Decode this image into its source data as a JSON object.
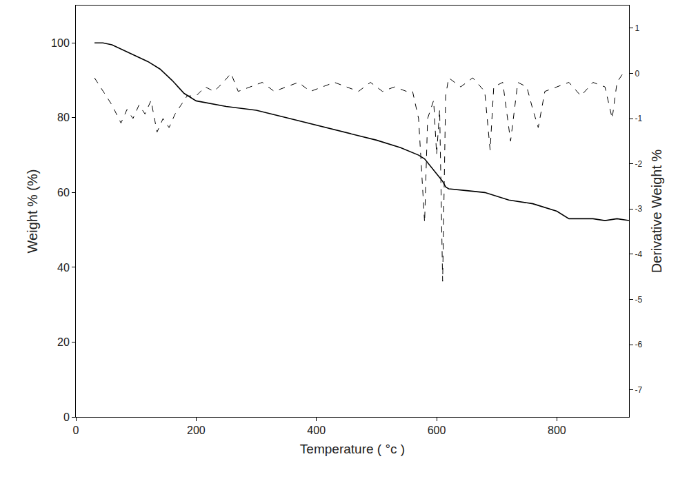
{
  "chart_data": {
    "type": "line",
    "x_label": "Temperature ( °c )",
    "y_label": "Weight % (%)",
    "y2_label": "Derivative Weight %",
    "xlim": [
      0,
      920
    ],
    "xticks": [
      0,
      200,
      400,
      600,
      800
    ],
    "ylim": [
      0,
      110
    ],
    "yticks": [
      0,
      20,
      40,
      60,
      80,
      100
    ],
    "y2lim": [
      -7.6,
      1.5
    ],
    "y2ticks": [
      1,
      0,
      -1,
      -2,
      -3,
      -4,
      -5,
      -6,
      -7
    ],
    "grid": false,
    "series": [
      {
        "name": "Weight %",
        "color": "#000000",
        "line_style": "solid",
        "x": [
          31,
          45,
          60,
          80,
          100,
          120,
          140,
          160,
          180,
          200,
          250,
          300,
          350,
          400,
          450,
          500,
          540,
          570,
          580,
          590,
          600,
          610,
          615,
          620,
          650,
          680,
          720,
          760,
          800,
          820,
          860,
          880,
          900,
          920
        ],
        "values": [
          100,
          100,
          99.5,
          98,
          96.5,
          95,
          93,
          90,
          86.5,
          84.5,
          83,
          82,
          80,
          78,
          76,
          74,
          72,
          70,
          69,
          67,
          65,
          63,
          61.5,
          61,
          60.5,
          60,
          58,
          57,
          55,
          53,
          53,
          52.5,
          53,
          52.5
        ]
      },
      {
        "name": "Derivative Weight %",
        "color": "#000000",
        "line_style": "dash",
        "axis": "y2",
        "x": [
          31,
          45,
          60,
          75,
          85,
          95,
          105,
          115,
          125,
          135,
          145,
          155,
          165,
          175,
          185,
          200,
          215,
          230,
          245,
          258,
          270,
          290,
          310,
          330,
          350,
          370,
          390,
          410,
          430,
          450,
          470,
          490,
          510,
          530,
          550,
          560,
          570,
          580,
          585,
          595,
          600,
          605,
          610,
          615,
          620,
          640,
          660,
          680,
          689,
          695,
          710,
          723,
          735,
          750,
          760,
          769,
          780,
          800,
          820,
          840,
          860,
          880,
          892,
          900,
          910
        ],
        "values": [
          -0.1,
          -0.4,
          -0.7,
          -1.1,
          -0.8,
          -1.0,
          -0.7,
          -0.9,
          -0.6,
          -1.3,
          -1.0,
          -1.2,
          -0.9,
          -0.7,
          -0.5,
          -0.5,
          -0.3,
          -0.4,
          -0.2,
          0.0,
          -0.4,
          -0.3,
          -0.2,
          -0.4,
          -0.3,
          -0.2,
          -0.4,
          -0.3,
          -0.2,
          -0.3,
          -0.4,
          -0.2,
          -0.4,
          -0.3,
          -0.4,
          -0.4,
          -1.0,
          -3.3,
          -1.0,
          -0.6,
          -1.8,
          -0.8,
          -4.6,
          -0.5,
          -0.1,
          -0.3,
          -0.1,
          -0.4,
          -1.7,
          -0.3,
          -0.2,
          -1.5,
          -0.2,
          -0.3,
          -0.8,
          -1.2,
          -0.4,
          -0.3,
          -0.2,
          -0.5,
          -0.2,
          -0.3,
          -1.0,
          -0.2,
          0.0
        ]
      }
    ]
  }
}
